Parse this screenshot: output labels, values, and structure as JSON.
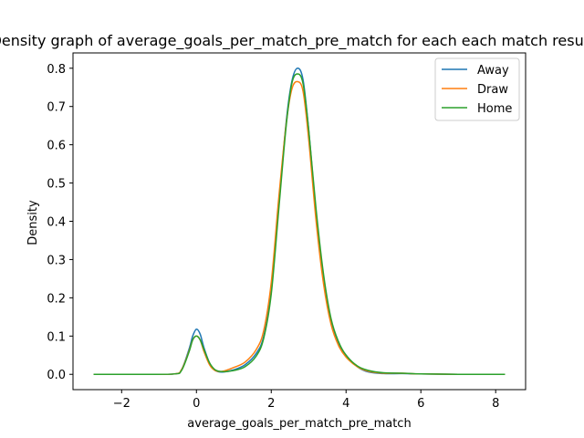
{
  "chart_data": {
    "type": "line",
    "title": "Density graph of average_goals_per_match_pre_match for each each match result",
    "xlabel": "average_goals_per_match_pre_match",
    "ylabel": "Density",
    "xlim": [
      -3.3,
      8.8
    ],
    "ylim": [
      -0.04,
      0.84
    ],
    "xticks": [
      -2,
      0,
      2,
      4,
      6,
      8
    ],
    "xtick_labels": [
      "−2",
      "0",
      "2",
      "4",
      "6",
      "8"
    ],
    "yticks": [
      0.0,
      0.1,
      0.2,
      0.3,
      0.4,
      0.5,
      0.6,
      0.7,
      0.8
    ],
    "ytick_labels": [
      "0.0",
      "0.1",
      "0.2",
      "0.3",
      "0.4",
      "0.5",
      "0.6",
      "0.7",
      "0.8"
    ],
    "grid": false,
    "legend_position": "upper right",
    "x": [
      -2.75,
      -1.5,
      -0.6,
      -0.4,
      -0.2,
      -0.1,
      0.0,
      0.1,
      0.2,
      0.35,
      0.5,
      0.7,
      1.0,
      1.3,
      1.6,
      1.8,
      2.0,
      2.2,
      2.4,
      2.55,
      2.7,
      2.85,
      3.0,
      3.2,
      3.4,
      3.6,
      3.8,
      4.0,
      4.3,
      4.6,
      5.0,
      5.5,
      6.0,
      7.0,
      8.25
    ],
    "series": [
      {
        "name": "Away",
        "color": "#1f77b4",
        "values": [
          0.0,
          0.0,
          0.001,
          0.012,
          0.065,
          0.1,
          0.118,
          0.105,
          0.07,
          0.03,
          0.01,
          0.006,
          0.012,
          0.025,
          0.055,
          0.1,
          0.22,
          0.44,
          0.66,
          0.765,
          0.8,
          0.77,
          0.64,
          0.42,
          0.25,
          0.14,
          0.08,
          0.05,
          0.02,
          0.006,
          0.002,
          0.002,
          0.001,
          0.0,
          0.0
        ]
      },
      {
        "name": "Draw",
        "color": "#ff7f0e",
        "values": [
          0.0,
          0.0,
          0.001,
          0.012,
          0.06,
          0.09,
          0.1,
          0.09,
          0.06,
          0.025,
          0.01,
          0.008,
          0.018,
          0.032,
          0.065,
          0.115,
          0.24,
          0.46,
          0.655,
          0.745,
          0.765,
          0.74,
          0.615,
          0.4,
          0.235,
          0.13,
          0.075,
          0.045,
          0.02,
          0.008,
          0.003,
          0.003,
          0.001,
          0.0,
          0.0
        ]
      },
      {
        "name": "Home",
        "color": "#2ca02c",
        "values": [
          0.0,
          0.0,
          0.001,
          0.01,
          0.058,
          0.09,
          0.1,
          0.09,
          0.065,
          0.03,
          0.012,
          0.007,
          0.01,
          0.02,
          0.048,
          0.095,
          0.21,
          0.43,
          0.65,
          0.76,
          0.785,
          0.76,
          0.64,
          0.43,
          0.26,
          0.145,
          0.085,
          0.05,
          0.022,
          0.01,
          0.004,
          0.003,
          0.001,
          0.0,
          0.0
        ]
      }
    ]
  }
}
